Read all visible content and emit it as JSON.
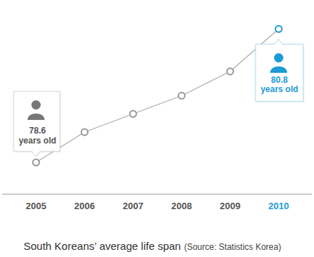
{
  "chart_data": {
    "type": "line",
    "title": "South Koreans’ average life span",
    "subtitle": "(Source: Statistics Korea)",
    "categories": [
      "2005",
      "2006",
      "2007",
      "2008",
      "2009",
      "2010"
    ],
    "values": [
      78.6,
      79.1,
      79.4,
      79.7,
      80.1,
      80.8
    ],
    "value_labels": [
      "78.6 years old",
      null,
      null,
      null,
      null,
      "80.8 years old"
    ],
    "data_labels": true,
    "color": "#aaaaaa",
    "colors": [
      "#999999",
      "#999999",
      "#999999",
      "#999999",
      "#999999",
      "#1e9bd7"
    ],
    "marker": "circle",
    "tick_labels": "x"
  }
}
